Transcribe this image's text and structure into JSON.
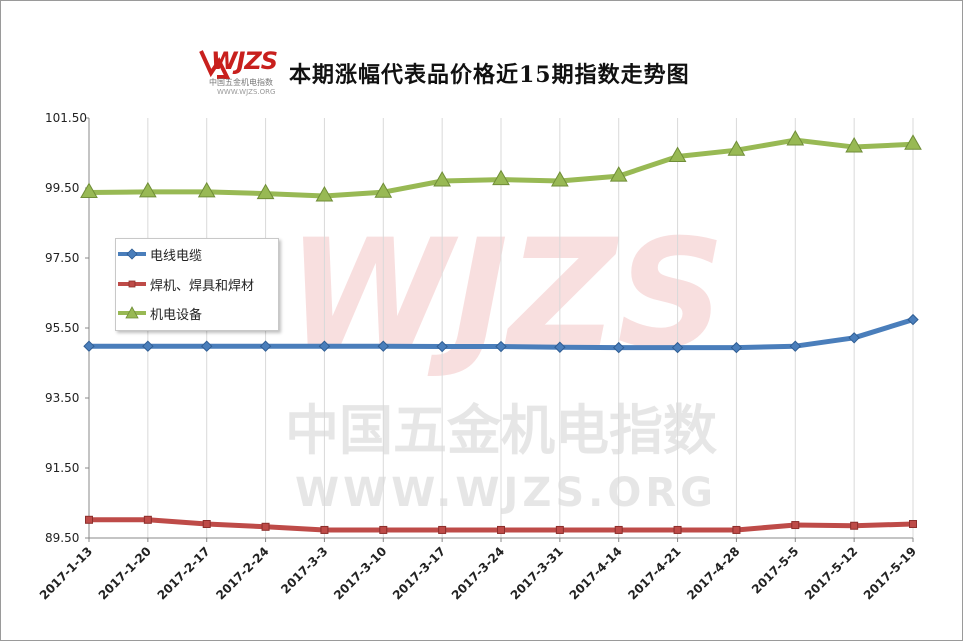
{
  "title": "本期涨幅代表品价格近15期指数走势图",
  "logo": {
    "text": "WJZS",
    "subtitle": "中国五金机电指数",
    "url": "WWW.WJZS.ORG"
  },
  "watermark": {
    "logo": "WJZS",
    "line1": "中国五金机电指数",
    "line2": "WWW.WJZS.ORG"
  },
  "colors": {
    "series1": "#4a7ebb",
    "series2": "#be4b48",
    "series3": "#98b954",
    "grid": "#d9d9d9",
    "axis": "#888888"
  },
  "chart_data": {
    "type": "line",
    "categories": [
      "2017-1-13",
      "2017-1-20",
      "2017-2-17",
      "2017-2-24",
      "2017-3-3",
      "2017-3-10",
      "2017-3-17",
      "2017-3-24",
      "2017-3-31",
      "2017-4-14",
      "2017-4-21",
      "2017-4-28",
      "2017-5-5",
      "2017-5-12",
      "2017-5-19"
    ],
    "ylim": [
      89.5,
      101.5
    ],
    "yticks": [
      "89.50",
      "91.50",
      "93.50",
      "95.50",
      "97.50",
      "99.50",
      "101.50"
    ],
    "legend_position": "left",
    "grid": true,
    "series": [
      {
        "name": "电线电缆",
        "marker": "diamond",
        "values": [
          94.98,
          94.98,
          94.98,
          94.98,
          94.98,
          94.98,
          94.97,
          94.97,
          94.95,
          94.94,
          94.94,
          94.94,
          94.98,
          95.22,
          95.74
        ]
      },
      {
        "name": "焊机、焊具和焊材",
        "marker": "square",
        "values": [
          90.02,
          90.02,
          89.9,
          89.82,
          89.73,
          89.73,
          89.73,
          89.73,
          89.73,
          89.73,
          89.73,
          89.73,
          89.87,
          89.85,
          89.9
        ]
      },
      {
        "name": "机电设备",
        "marker": "triangle",
        "values": [
          99.37,
          99.39,
          99.39,
          99.34,
          99.27,
          99.38,
          99.7,
          99.74,
          99.7,
          99.84,
          100.4,
          100.58,
          100.87,
          100.67,
          100.75
        ]
      }
    ]
  }
}
